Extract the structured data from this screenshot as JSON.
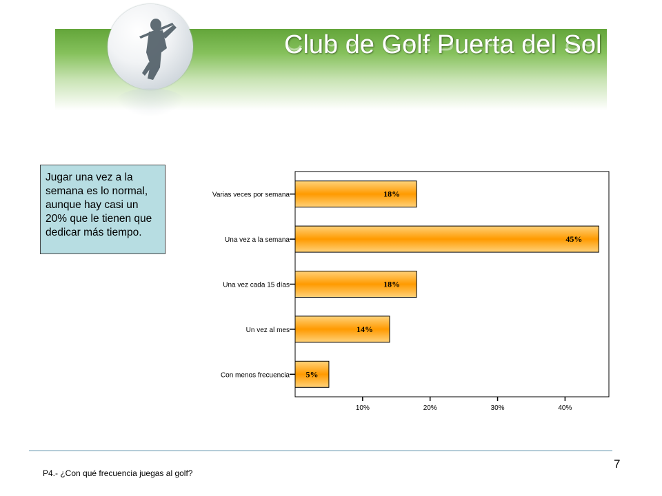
{
  "header": {
    "title": "Club de Golf Puerta del Sol"
  },
  "note": "Jugar una vez a la semana es lo normal, aunque hay casi un 20% que le tienen que dedicar más tiempo.",
  "footer": {
    "page_number": "7",
    "question": "P4.- ¿Con qué frecuencia juegas al golf?"
  },
  "colors": {
    "banner": "#63a53a",
    "bar": "#ff9900",
    "note_bg": "#b7dde2"
  },
  "chart_data": {
    "type": "bar",
    "orientation": "horizontal",
    "categories": [
      "Varias veces por semana",
      "Una vez a la semana",
      "Una vez cada 15 días",
      "Un vez al mes",
      "Con menos frecuencia"
    ],
    "values": [
      18,
      45,
      18,
      14,
      5
    ],
    "data_labels": [
      "18%",
      "45%",
      "18%",
      "14%",
      "5%"
    ],
    "xticks": [
      10,
      20,
      30,
      40
    ],
    "xtick_labels": [
      "10%",
      "20%",
      "30%",
      "40%"
    ],
    "xlim": [
      0,
      46.5
    ],
    "grid": false,
    "legend": "none"
  }
}
